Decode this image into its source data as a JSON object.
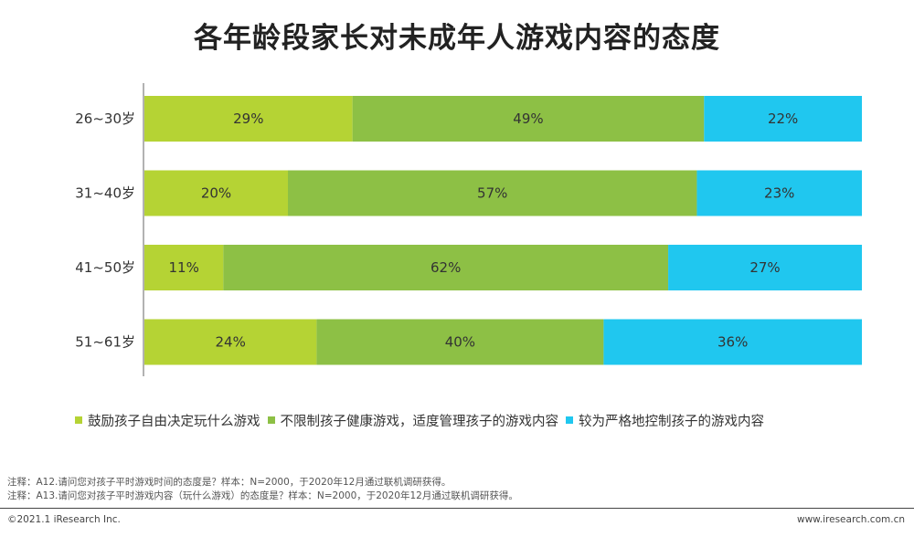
{
  "title": "各年龄段家长对未成年人游戏内容的态度",
  "chart_data": {
    "type": "bar",
    "orientation": "horizontal",
    "stacked": true,
    "title": "各年龄段家长对未成年人游戏内容的态度",
    "categories": [
      "26~30岁",
      "31~40岁",
      "41~50岁",
      "51~61岁"
    ],
    "series": [
      {
        "name": "鼓励孩子自由决定玩什么游戏",
        "color": "#b5d334",
        "values": [
          29,
          20,
          11,
          24
        ],
        "labels": [
          "29%",
          "20%",
          "11%",
          "24%"
        ]
      },
      {
        "name": "不限制孩子健康游戏，适度管理孩子的游戏内容",
        "color": "#8dc045",
        "values": [
          49,
          57,
          62,
          40
        ],
        "labels": [
          "49%",
          "57%",
          "62%",
          "40%"
        ]
      },
      {
        "name": "较为严格地控制孩子的游戏内容",
        "color": "#20c7ef",
        "values": [
          22,
          23,
          27,
          36
        ],
        "labels": [
          "22%",
          "23%",
          "27%",
          "36%"
        ]
      }
    ],
    "xlim": [
      0,
      100
    ],
    "unit": "%",
    "grid": false,
    "legend_position": "bottom"
  },
  "notes": [
    "注释：A12.请问您对孩子平时游戏时间的态度是？样本：N=2000，于2020年12月通过联机调研获得。",
    "注释：A13.请问您对孩子平时游戏内容（玩什么游戏）的态度是？样本：N=2000，于2020年12月通过联机调研获得。"
  ],
  "footer": {
    "copyright": "©2021.1 iResearch Inc.",
    "website": "www.iresearch.com.cn"
  }
}
